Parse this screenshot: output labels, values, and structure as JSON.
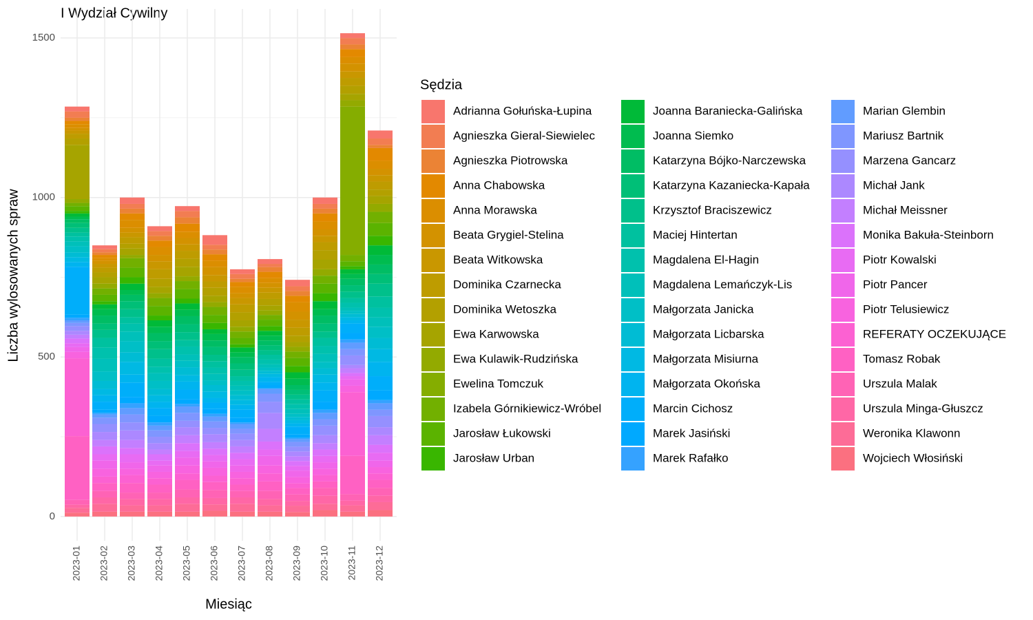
{
  "chart_data": {
    "type": "stacked_bar",
    "title": "I Wydział Cywilny",
    "x_label": "Miesiąc",
    "y_label": "Liczba wylosowanych spraw",
    "legend_title": "Sędzia",
    "legend": "right",
    "grid": true,
    "categories": [
      "2023-01",
      "2023-02",
      "2023-03",
      "2023-04",
      "2023-05",
      "2023-06",
      "2023-07",
      "2023-08",
      "2023-09",
      "2023-10",
      "2023-11",
      "2023-12"
    ],
    "ylim": [
      -76,
      1591
    ],
    "yticks": [
      0,
      500,
      1000,
      1500
    ],
    "minor_yticks": [
      250,
      750,
      1250
    ],
    "series": [
      {
        "name": "Adrianna Gołuńska-Łupina",
        "color": "#F8766D",
        "values": [
          15,
          12,
          20,
          15,
          15,
          30,
          15,
          15,
          20,
          20,
          15,
          25
        ]
      },
      {
        "name": "Agnieszka Gieral-Siewielec",
        "color": "#F27D52",
        "values": [
          20,
          10,
          15,
          15,
          20,
          15,
          15,
          10,
          15,
          15,
          20,
          20
        ]
      },
      {
        "name": "Agnieszka Piotrowska",
        "color": "#EB8335",
        "values": [
          10,
          8,
          15,
          15,
          20,
          15,
          10,
          15,
          15,
          15,
          15,
          10
        ]
      },
      {
        "name": "Anna Chabowska",
        "color": "#E38900",
        "values": [
          10,
          10,
          20,
          20,
          25,
          20,
          15,
          20,
          20,
          25,
          25,
          40
        ]
      },
      {
        "name": "Anna Morawska",
        "color": "#DB8E00",
        "values": [
          12,
          8,
          25,
          25,
          20,
          20,
          20,
          15,
          30,
          25,
          20,
          25
        ]
      },
      {
        "name": "Beata Grygiel-Stelina",
        "color": "#D39200",
        "values": [
          8,
          10,
          15,
          20,
          20,
          25,
          15,
          15,
          25,
          20,
          25,
          20
        ]
      },
      {
        "name": "Beata Witkowska",
        "color": "#C99700",
        "values": [
          10,
          12,
          15,
          25,
          20,
          20,
          20,
          15,
          25,
          20,
          20,
          20
        ]
      },
      {
        "name": "Dominika Czarnecka",
        "color": "#BE9C00",
        "values": [
          15,
          15,
          20,
          30,
          25,
          20,
          25,
          20,
          25,
          25,
          25,
          25
        ]
      },
      {
        "name": "Dominika Wetoszka",
        "color": "#B3A000",
        "values": [
          20,
          15,
          15,
          25,
          25,
          25,
          25,
          20,
          20,
          30,
          25,
          20
        ]
      },
      {
        "name": "Ewa Karwowska",
        "color": "#A6A400",
        "values": [
          170,
          20,
          20,
          20,
          30,
          20,
          20,
          15,
          15,
          30,
          20,
          25
        ]
      },
      {
        "name": "Ewa Kulawik-Rudzińska",
        "color": "#93AA00",
        "values": [
          12,
          15,
          10,
          15,
          15,
          15,
          15,
          15,
          15,
          20,
          20,
          25
        ]
      },
      {
        "name": "Ewelina Tomczuk",
        "color": "#85AD00",
        "values": [
          0,
          0,
          0,
          0,
          0,
          0,
          0,
          0,
          0,
          0,
          465,
          0
        ]
      },
      {
        "name": "Izabela Górnikiewicz-Wróbel",
        "color": "#72B000",
        "values": [
          10,
          20,
          30,
          25,
          25,
          25,
          20,
          15,
          20,
          25,
          20,
          35
        ]
      },
      {
        "name": "Jarosław Łukowski",
        "color": "#5BB300",
        "values": [
          15,
          20,
          30,
          30,
          30,
          25,
          20,
          20,
          25,
          30,
          15,
          40
        ]
      },
      {
        "name": "Jarosław Urban",
        "color": "#39B600",
        "values": [
          8,
          10,
          20,
          15,
          15,
          20,
          10,
          15,
          20,
          25,
          10,
          30
        ]
      },
      {
        "name": "Joanna Baraniecka-Galińska",
        "color": "#00BA38",
        "values": [
          10,
          15,
          20,
          20,
          20,
          15,
          15,
          15,
          20,
          25,
          15,
          30
        ]
      },
      {
        "name": "Joanna Siemko",
        "color": "#00BC4F",
        "values": [
          8,
          20,
          15,
          20,
          20,
          20,
          15,
          15,
          20,
          20,
          15,
          30
        ]
      },
      {
        "name": "Katarzyna Bójko-Narczewska",
        "color": "#00BD64",
        "values": [
          12,
          25,
          20,
          25,
          25,
          20,
          20,
          15,
          15,
          25,
          20,
          30
        ]
      },
      {
        "name": "Katarzyna Kazaniecka-Kapała",
        "color": "#00BF77",
        "values": [
          15,
          20,
          25,
          25,
          25,
          25,
          20,
          15,
          15,
          25,
          20,
          30
        ]
      },
      {
        "name": "Krzysztof Braciszewicz",
        "color": "#00C08B",
        "values": [
          15,
          25,
          25,
          30,
          25,
          20,
          20,
          15,
          15,
          20,
          20,
          40
        ]
      },
      {
        "name": "Maciej Hintertan",
        "color": "#00C19F",
        "values": [
          12,
          30,
          20,
          25,
          20,
          20,
          15,
          15,
          15,
          25,
          15,
          35
        ]
      },
      {
        "name": "Magdalena El-Hagin",
        "color": "#00C1AD",
        "values": [
          15,
          35,
          25,
          20,
          25,
          20,
          15,
          15,
          15,
          25,
          15,
          30
        ]
      },
      {
        "name": "Magdalena Lemańczyk-Lis",
        "color": "#00C0BA",
        "values": [
          15,
          40,
          30,
          25,
          20,
          20,
          15,
          10,
          15,
          25,
          10,
          30
        ]
      },
      {
        "name": "Małgorzata Janicka",
        "color": "#00BFC6",
        "values": [
          20,
          30,
          35,
          25,
          20,
          15,
          15,
          10,
          10,
          20,
          10,
          35
        ]
      },
      {
        "name": "Małgorzata Licbarska",
        "color": "#00BCD4",
        "values": [
          15,
          25,
          30,
          20,
          25,
          20,
          15,
          10,
          10,
          20,
          10,
          35
        ]
      },
      {
        "name": "Małgorzata Misiurna",
        "color": "#00B9E3",
        "values": [
          15,
          20,
          40,
          20,
          20,
          20,
          15,
          10,
          10,
          25,
          10,
          40
        ]
      },
      {
        "name": "Małgorzata Okońska",
        "color": "#00B4EF",
        "values": [
          15,
          20,
          25,
          20,
          25,
          15,
          15,
          15,
          10,
          25,
          10,
          45
        ]
      },
      {
        "name": "Marcin Cichosz",
        "color": "#00AEFA",
        "values": [
          150,
          25,
          45,
          25,
          30,
          20,
          25,
          10,
          25,
          35,
          30,
          45
        ]
      },
      {
        "name": "Marek Jasiński",
        "color": "#00A9FF",
        "values": [
          10,
          10,
          20,
          20,
          15,
          15,
          15,
          10,
          10,
          25,
          20,
          30
        ]
      },
      {
        "name": "Marek Rafałko",
        "color": "#35A2FF",
        "values": [
          8,
          5,
          15,
          10,
          8,
          9,
          5,
          2,
          5,
          10,
          10,
          10
        ]
      },
      {
        "name": "Marian Glembin",
        "color": "#619CFF",
        "values": [
          8,
          10,
          20,
          15,
          20,
          15,
          15,
          15,
          8,
          20,
          20,
          20
        ]
      },
      {
        "name": "Mariusz Bartnik",
        "color": "#7F96FF",
        "values": [
          10,
          20,
          25,
          20,
          25,
          20,
          15,
          25,
          15,
          20,
          20,
          20
        ]
      },
      {
        "name": "Marzena Gancarz",
        "color": "#9590FF",
        "values": [
          15,
          25,
          25,
          20,
          20,
          20,
          20,
          35,
          15,
          30,
          30,
          35
        ]
      },
      {
        "name": "Michał Jank",
        "color": "#AC88FF",
        "values": [
          12,
          25,
          30,
          20,
          25,
          25,
          20,
          50,
          15,
          25,
          10,
          25
        ]
      },
      {
        "name": "Michał Meissner",
        "color": "#C37FFF",
        "values": [
          12,
          20,
          25,
          15,
          25,
          20,
          20,
          40,
          15,
          20,
          15,
          30
        ]
      },
      {
        "name": "Monika Bakuła-Steinborn",
        "color": "#DB72FB",
        "values": [
          15,
          25,
          20,
          20,
          25,
          20,
          20,
          25,
          15,
          20,
          10,
          25
        ]
      },
      {
        "name": "Piotr Kowalski",
        "color": "#E86BF3",
        "values": [
          12,
          20,
          25,
          15,
          20,
          20,
          20,
          20,
          15,
          20,
          10,
          25
        ]
      },
      {
        "name": "Piotr Pancer",
        "color": "#F066EA",
        "values": [
          15,
          25,
          20,
          20,
          25,
          20,
          20,
          30,
          20,
          20,
          20,
          20
        ]
      },
      {
        "name": "Piotr Telusiewicz",
        "color": "#F863DF",
        "values": [
          20,
          25,
          20,
          20,
          25,
          25,
          20,
          25,
          20,
          20,
          20,
          20
        ]
      },
      {
        "name": "REFERATY OCZEKUJĄCE",
        "color": "#FC61D2",
        "values": [
          244,
          20,
          25,
          20,
          20,
          20,
          20,
          25,
          15,
          20,
          200,
          20
        ]
      },
      {
        "name": "Tomasz Robak",
        "color": "#FF61C3",
        "values": [
          200,
          25,
          30,
          25,
          30,
          25,
          20,
          30,
          20,
          20,
          120,
          25
        ]
      },
      {
        "name": "Urszula Malak",
        "color": "#FF63B5",
        "values": [
          15,
          20,
          20,
          20,
          25,
          25,
          20,
          25,
          20,
          25,
          20,
          25
        ]
      },
      {
        "name": "Urszula Minga-Głuszcz",
        "color": "#FF67A6",
        "values": [
          10,
          20,
          20,
          20,
          20,
          20,
          20,
          20,
          15,
          25,
          15,
          20
        ]
      },
      {
        "name": "Weronika Klawonn",
        "color": "#FD6C97",
        "values": [
          15,
          25,
          20,
          20,
          25,
          20,
          25,
          20,
          20,
          20,
          20,
          25
        ]
      },
      {
        "name": "Wojciech Włosiński",
        "color": "#FB7080",
        "values": [
          12,
          15,
          15,
          15,
          15,
          18,
          15,
          15,
          14,
          20,
          15,
          20
        ]
      }
    ]
  }
}
